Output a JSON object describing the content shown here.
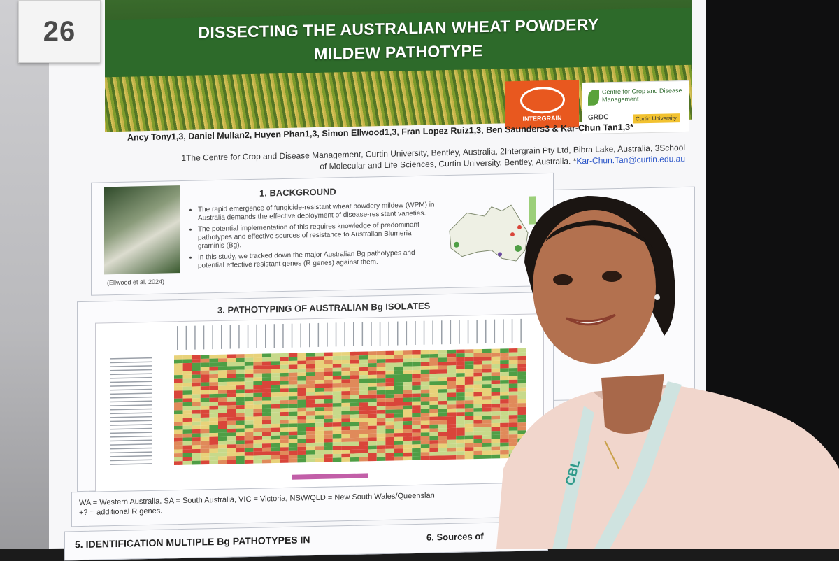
{
  "board_number": "26",
  "poster": {
    "title_line1": "DISSECTING THE AUSTRALIAN WHEAT POWDERY",
    "title_line2": "MILDEW PATHOTYPE",
    "logos": {
      "intergrain": "INTERGRAIN",
      "ccdm": "Centre for Crop and Disease Management",
      "grdc": "GRDC",
      "curtin": "Curtin University"
    },
    "authors": "Ancy Tony1,3, Daniel Mullan2, Huyen Phan1,3, Simon Ellwood1,3, Fran Lopez Ruiz1,3, Ben Saunders3 & Kar-Chun Tan1,3*",
    "affiliation_line1": "1The Centre for Crop and Disease Management, Curtin University, Bentley, Australia, 2Intergrain Pty Ltd, Bibra Lake, Australia, 3School",
    "affiliation_line2": "of Molecular and Life Sciences, Curtin University, Bentley, Australia. *",
    "email": "Kar-Chun.Tan@curtin.edu.au",
    "background": {
      "heading": "1. BACKGROUND",
      "bullets": [
        "The rapid emergence of fungicide-resistant wheat powdery mildew (WPM) in Australia demands the effective deployment of disease-resistant varieties.",
        "The potential implementation of this requires knowledge of predominant pathotypes and effective sources of resistance to Australian Blumeria graminis (Bg).",
        "In this study, we tracked down the major Australian Bg pathotypes and potential effective resistant genes (R genes) against them."
      ],
      "photo_caption": "(Ellwood et al. 2024)"
    },
    "pathotyping": {
      "heading": "3. PATHOTYPING OF AUSTRALIAN Bg ISOLATES"
    },
    "notes": {
      "line1": "WA = Western Australia, SA = South Australia, VIC = Victoria, NSW/QLD = New South Wales/Queenslan",
      "line2": "+? = additional R genes."
    },
    "section5_heading": "5. IDENTIFICATION MULTIPLE Bg PATHOTYPES IN",
    "section6_heading": "6. Sources of"
  },
  "lanyard_text": "CBL",
  "colors": {
    "banner_green": "#2d6a2a",
    "intergrain_orange": "#e8581f",
    "heat_red": "#d9453a",
    "heat_green": "#4f9e45",
    "heat_yellow": "#e8d27a"
  }
}
